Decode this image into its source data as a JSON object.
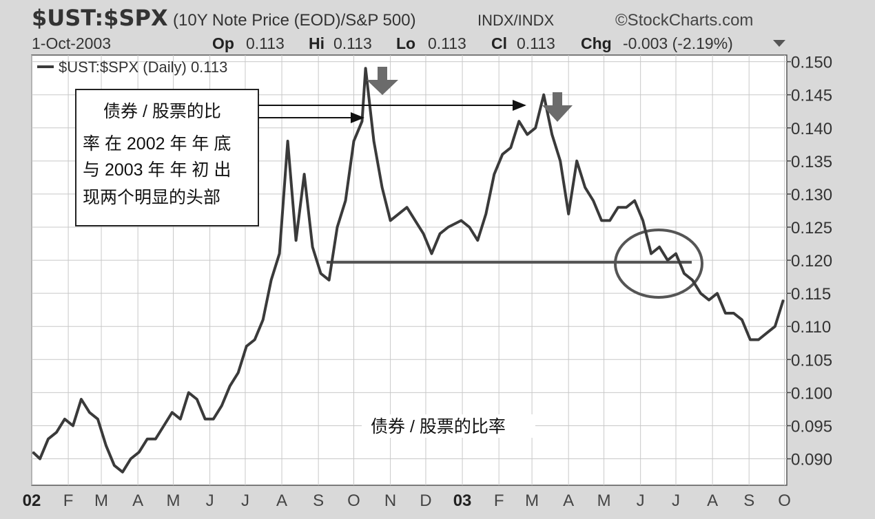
{
  "header": {
    "symbol": "$UST:$SPX",
    "description": "(10Y Note Price (EOD)/S&P 500)",
    "exchange": "INDX/INDX",
    "brand": "©StockCharts.com",
    "date": "1-Oct-2003",
    "op_label": "Op",
    "op_value": "0.113",
    "hi_label": "Hi",
    "hi_value": "0.113",
    "lo_label": "Lo",
    "lo_value": "0.113",
    "cl_label": "Cl",
    "cl_value": "0.113",
    "chg_label": "Chg",
    "chg_value": "-0.003 (-2.19%)"
  },
  "legend": {
    "text": "$UST:$SPX (Daily) 0.113"
  },
  "annotation": {
    "lines": [
      "债券 / 股票的比",
      "率 在 2002 年 年 底",
      "与 2003 年 年 初 出",
      "现两个明显的头部"
    ]
  },
  "caption": "债券 / 股票的比率",
  "colors": {
    "background": "#d9d9d9",
    "plot": "#ffffff",
    "line": "#3a3a3a",
    "marker": "#6b6b6b"
  },
  "chart_data": {
    "type": "line",
    "title": "",
    "xlabel": "",
    "ylabel": "",
    "ylim": [
      0.086,
      0.151
    ],
    "grid": true,
    "y_ticks": [
      "0.090",
      "0.095",
      "0.100",
      "0.105",
      "0.110",
      "0.115",
      "0.120",
      "0.125",
      "0.130",
      "0.135",
      "0.140",
      "0.145",
      "0.150"
    ],
    "x_ticks": [
      "02",
      "F",
      "M",
      "A",
      "M",
      "J",
      "J",
      "A",
      "S",
      "O",
      "N",
      "D",
      "03",
      "F",
      "M",
      "A",
      "M",
      "J",
      "J",
      "A",
      "S",
      "O"
    ],
    "series": [
      {
        "x": [
          "2002-01-02",
          "2002-01-08",
          "2002-01-15",
          "2002-01-22",
          "2002-01-29",
          "2002-02-05",
          "2002-02-12",
          "2002-02-19",
          "2002-02-26",
          "2002-03-05",
          "2002-03-12",
          "2002-03-19",
          "2002-03-26",
          "2002-04-02",
          "2002-04-09",
          "2002-04-16",
          "2002-04-23",
          "2002-04-30",
          "2002-05-07",
          "2002-05-14",
          "2002-05-21",
          "2002-05-28",
          "2002-06-04",
          "2002-06-11",
          "2002-06-18",
          "2002-06-25",
          "2002-07-02",
          "2002-07-09",
          "2002-07-16",
          "2002-07-23",
          "2002-07-30",
          "2002-08-06",
          "2002-08-13",
          "2002-08-20",
          "2002-08-27",
          "2002-09-03",
          "2002-09-10",
          "2002-09-17",
          "2002-09-24",
          "2002-10-01",
          "2002-10-08",
          "2002-10-11",
          "2002-10-18",
          "2002-10-25",
          "2002-11-01",
          "2002-11-08",
          "2002-11-15",
          "2002-11-22",
          "2002-11-29",
          "2002-12-06",
          "2002-12-13",
          "2002-12-20",
          "2002-12-31",
          "2003-01-07",
          "2003-01-14",
          "2003-01-21",
          "2003-01-28",
          "2003-02-04",
          "2003-02-11",
          "2003-02-18",
          "2003-02-25",
          "2003-03-04",
          "2003-03-11",
          "2003-03-18",
          "2003-03-25",
          "2003-04-01",
          "2003-04-08",
          "2003-04-15",
          "2003-04-22",
          "2003-04-29",
          "2003-05-06",
          "2003-05-13",
          "2003-05-20",
          "2003-05-27",
          "2003-06-03",
          "2003-06-10",
          "2003-06-17",
          "2003-06-24",
          "2003-07-01",
          "2003-07-08",
          "2003-07-15",
          "2003-07-22",
          "2003-07-29",
          "2003-08-05",
          "2003-08-12",
          "2003-08-19",
          "2003-08-26",
          "2003-09-02",
          "2003-09-09",
          "2003-09-16",
          "2003-09-23",
          "2003-09-30"
        ],
        "y": [
          0.091,
          0.09,
          0.093,
          0.094,
          0.096,
          0.095,
          0.099,
          0.097,
          0.096,
          0.092,
          0.089,
          0.088,
          0.09,
          0.091,
          0.093,
          0.093,
          0.095,
          0.097,
          0.096,
          0.1,
          0.099,
          0.096,
          0.096,
          0.098,
          0.101,
          0.103,
          0.107,
          0.108,
          0.111,
          0.117,
          0.121,
          0.138,
          0.123,
          0.133,
          0.122,
          0.118,
          0.117,
          0.125,
          0.129,
          0.138,
          0.141,
          0.149,
          0.138,
          0.131,
          0.126,
          0.127,
          0.128,
          0.126,
          0.124,
          0.121,
          0.124,
          0.125,
          0.126,
          0.125,
          0.123,
          0.127,
          0.133,
          0.136,
          0.137,
          0.141,
          0.139,
          0.14,
          0.145,
          0.139,
          0.135,
          0.127,
          0.135,
          0.131,
          0.129,
          0.126,
          0.126,
          0.128,
          0.128,
          0.129,
          0.126,
          0.121,
          0.122,
          0.12,
          0.121,
          0.118,
          0.117,
          0.115,
          0.114,
          0.115,
          0.112,
          0.112,
          0.111,
          0.108,
          0.108,
          0.109,
          0.11,
          0.114
        ]
      }
    ],
    "support_level": 0.1197
  }
}
